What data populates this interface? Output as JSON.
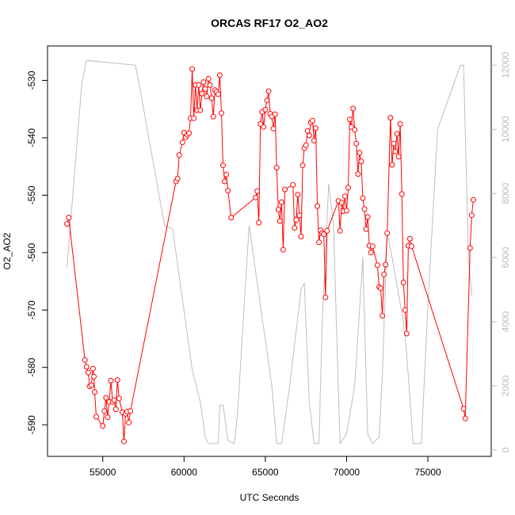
{
  "chart_data": {
    "type": "line",
    "title": "ORCAS RF17 O2_AO2",
    "xlabel": "UTC Seconds",
    "ylabel": "O2_AO2",
    "xlim": [
      51600,
      78900
    ],
    "ylim": [
      -595.5,
      -524.0
    ],
    "y2lim": [
      -200,
      12600
    ],
    "x_ticks": [
      55000,
      60000,
      65000,
      70000,
      75000
    ],
    "y_ticks": [
      -590,
      -580,
      -570,
      -560,
      -550,
      -540,
      -530
    ],
    "y2_ticks": [
      0,
      2000,
      4000,
      6000,
      8000,
      10000,
      12000
    ],
    "series": [
      {
        "role": "primary",
        "color": "#ff0000",
        "marker": "open-circle",
        "points": [
          [
            52800,
            -555.0
          ],
          [
            52900,
            -553.9
          ],
          [
            53900,
            -578.7
          ],
          [
            54000,
            -579.9
          ],
          [
            54100,
            -580.9
          ],
          [
            54200,
            -583.3
          ],
          [
            54300,
            -583.1
          ],
          [
            54400,
            -580.2
          ],
          [
            54450,
            -581.6
          ],
          [
            54500,
            -584.3
          ],
          [
            54600,
            -588.6
          ],
          [
            55000,
            -590.2
          ],
          [
            55100,
            -587.6
          ],
          [
            55200,
            -585.3
          ],
          [
            55300,
            -588.7
          ],
          [
            55400,
            -586.0
          ],
          [
            55500,
            -582.3
          ],
          [
            55600,
            -586.0
          ],
          [
            55700,
            -585.7
          ],
          [
            55800,
            -587.3
          ],
          [
            55900,
            -582.2
          ],
          [
            56000,
            -585.4
          ],
          [
            56200,
            -587.8
          ],
          [
            56300,
            -592.9
          ],
          [
            56400,
            -588.1
          ],
          [
            56500,
            -587.7
          ],
          [
            56600,
            -589.6
          ],
          [
            56700,
            -587.6
          ],
          [
            59500,
            -547.6
          ],
          [
            59600,
            -547.1
          ],
          [
            59700,
            -543.0
          ],
          [
            59900,
            -540.8
          ],
          [
            60000,
            -539.1
          ],
          [
            60100,
            -539.9
          ],
          [
            60200,
            -539.5
          ],
          [
            60300,
            -539.2
          ],
          [
            60400,
            -536.6
          ],
          [
            60500,
            -528.0
          ],
          [
            60600,
            -536.6
          ],
          [
            60700,
            -530.8
          ],
          [
            60800,
            -535.2
          ],
          [
            60900,
            -530.8
          ],
          [
            61000,
            -535.2
          ],
          [
            61100,
            -532.3
          ],
          [
            61200,
            -530.3
          ],
          [
            61300,
            -531.5
          ],
          [
            61400,
            -532.8
          ],
          [
            61500,
            -529.7
          ],
          [
            61600,
            -530.8
          ],
          [
            61700,
            -533.1
          ],
          [
            61800,
            -536.3
          ],
          [
            61900,
            -531.7
          ],
          [
            62000,
            -532.0
          ],
          [
            62100,
            -532.4
          ],
          [
            62200,
            -529.1
          ],
          [
            62300,
            -535.7
          ],
          [
            62400,
            -544.8
          ],
          [
            62500,
            -547.6
          ],
          [
            62600,
            -546.4
          ],
          [
            62700,
            -549.2
          ],
          [
            62900,
            -553.9
          ],
          [
            64400,
            -550.4
          ],
          [
            64500,
            -549.3
          ],
          [
            64600,
            -554.8
          ],
          [
            64700,
            -537.6
          ],
          [
            64800,
            -535.5
          ],
          [
            64900,
            -538.1
          ],
          [
            65000,
            -535.1
          ],
          [
            65100,
            -533.5
          ],
          [
            65200,
            -531.9
          ],
          [
            65300,
            -535.8
          ],
          [
            65400,
            -536.3
          ],
          [
            65500,
            -538.4
          ],
          [
            65600,
            -535.9
          ],
          [
            65700,
            -545.2
          ],
          [
            65800,
            -552.5
          ],
          [
            65900,
            -554.5
          ],
          [
            66000,
            -551.2
          ],
          [
            66100,
            -559.5
          ],
          [
            66200,
            -549.0
          ],
          [
            66700,
            -548.2
          ],
          [
            66800,
            -555.7
          ],
          [
            66900,
            -554.3
          ],
          [
            67000,
            -549.9
          ],
          [
            67100,
            -553.5
          ],
          [
            67200,
            -557.2
          ],
          [
            67300,
            -544.8
          ],
          [
            67400,
            -541.8
          ],
          [
            67500,
            -541.3
          ],
          [
            67600,
            -538.8
          ],
          [
            67700,
            -539.6
          ],
          [
            67800,
            -537.3
          ],
          [
            67900,
            -537.0
          ],
          [
            68000,
            -540.5
          ],
          [
            68100,
            -538.3
          ],
          [
            68200,
            -551.9
          ],
          [
            68300,
            -558.2
          ],
          [
            68400,
            -556.1
          ],
          [
            68500,
            -556.6
          ],
          [
            68600,
            -556.8
          ],
          [
            68700,
            -567.8
          ],
          [
            68800,
            -556.2
          ],
          [
            69500,
            -551.0
          ],
          [
            69600,
            -556.2
          ],
          [
            69700,
            -551.3
          ],
          [
            69800,
            -552.8
          ],
          [
            69900,
            -550.2
          ],
          [
            70000,
            -552.7
          ],
          [
            70100,
            -548.7
          ],
          [
            70200,
            -536.8
          ],
          [
            70300,
            -538.1
          ],
          [
            70400,
            -534.9
          ],
          [
            70500,
            -538.6
          ],
          [
            70600,
            -541.0
          ],
          [
            70700,
            -546.3
          ],
          [
            70800,
            -542.6
          ],
          [
            70900,
            -544.1
          ],
          [
            71000,
            -550.5
          ],
          [
            71100,
            -552.4
          ],
          [
            71200,
            -555.9
          ],
          [
            71300,
            -553.8
          ],
          [
            71400,
            -558.8
          ],
          [
            71500,
            -560.0
          ],
          [
            71600,
            -558.9
          ],
          [
            71900,
            -562.2
          ],
          [
            72000,
            -566.0
          ],
          [
            72100,
            -566.2
          ],
          [
            72200,
            -571.0
          ],
          [
            72300,
            -563.8
          ],
          [
            72400,
            -562.1
          ],
          [
            72500,
            -556.6
          ],
          [
            72700,
            -536.5
          ],
          [
            72800,
            -544.7
          ],
          [
            72900,
            -541.0
          ],
          [
            73000,
            -542.4
          ],
          [
            73100,
            -539.3
          ],
          [
            73200,
            -543.3
          ],
          [
            73300,
            -537.6
          ],
          [
            73400,
            -549.8
          ],
          [
            73500,
            -565.2
          ],
          [
            73600,
            -570.0
          ],
          [
            73700,
            -574.1
          ],
          [
            73800,
            -558.8
          ],
          [
            73900,
            -557.6
          ],
          [
            74000,
            -558.9
          ],
          [
            77200,
            -587.2
          ],
          [
            77300,
            -588.9
          ],
          [
            77600,
            -559.2
          ],
          [
            77700,
            -553.5
          ],
          [
            77800,
            -550.8
          ]
        ]
      },
      {
        "role": "secondary",
        "color": "#bdbdbd",
        "marker": "none",
        "axis": "right",
        "points": [
          [
            52800,
            5700
          ],
          [
            53700,
            11400
          ],
          [
            54000,
            12150
          ],
          [
            57000,
            12000
          ],
          [
            57200,
            11500
          ],
          [
            58800,
            7000
          ],
          [
            59300,
            6900
          ],
          [
            60500,
            2500
          ],
          [
            61000,
            1500
          ],
          [
            61300,
            400
          ],
          [
            61500,
            200
          ],
          [
            62100,
            200
          ],
          [
            62200,
            1400
          ],
          [
            62400,
            1400
          ],
          [
            62700,
            300
          ],
          [
            63100,
            200
          ],
          [
            63300,
            1200
          ],
          [
            64000,
            7000
          ],
          [
            64700,
            4500
          ],
          [
            65400,
            2000
          ],
          [
            65700,
            200
          ],
          [
            66000,
            200
          ],
          [
            66500,
            2000
          ],
          [
            67200,
            5000
          ],
          [
            67400,
            5200
          ],
          [
            67700,
            1500
          ],
          [
            68000,
            200
          ],
          [
            68300,
            200
          ],
          [
            68500,
            4000
          ],
          [
            68900,
            8300
          ],
          [
            69200,
            7000
          ],
          [
            69400,
            3500
          ],
          [
            69600,
            200
          ],
          [
            70000,
            500
          ],
          [
            70500,
            2000
          ],
          [
            71000,
            6000
          ],
          [
            71300,
            500
          ],
          [
            71600,
            200
          ],
          [
            72000,
            400
          ],
          [
            72200,
            2300
          ],
          [
            72500,
            6800
          ],
          [
            72800,
            6000
          ],
          [
            73500,
            4000
          ],
          [
            73700,
            3000
          ],
          [
            74100,
            200
          ],
          [
            74600,
            200
          ],
          [
            75000,
            4500
          ],
          [
            75600,
            10000
          ],
          [
            76300,
            11000
          ],
          [
            77000,
            12000
          ],
          [
            77200,
            12000
          ],
          [
            77500,
            6000
          ],
          [
            77700,
            4800
          ]
        ]
      }
    ]
  }
}
